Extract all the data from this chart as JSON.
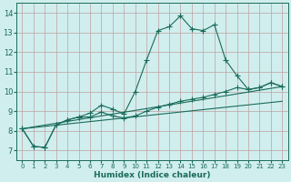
{
  "xlabel": "Humidex (Indice chaleur)",
  "xlim": [
    -0.5,
    23.5
  ],
  "ylim": [
    6.5,
    14.5
  ],
  "xticks": [
    0,
    1,
    2,
    3,
    4,
    5,
    6,
    7,
    8,
    9,
    10,
    11,
    12,
    13,
    14,
    15,
    16,
    17,
    18,
    19,
    20,
    21,
    22,
    23
  ],
  "yticks": [
    7,
    8,
    9,
    10,
    11,
    12,
    13,
    14
  ],
  "bg_color": "#d0eeee",
  "line_color": "#1a6b5a",
  "grid_color": "#c0a0a0",
  "series_main": {
    "x": [
      0,
      1,
      2,
      3,
      4,
      5,
      6,
      7,
      8,
      9,
      10,
      11,
      12,
      13,
      14,
      15,
      16,
      17,
      18,
      19,
      20,
      21,
      22,
      23
    ],
    "y": [
      8.1,
      7.2,
      7.15,
      8.3,
      8.55,
      8.7,
      8.9,
      9.3,
      9.1,
      8.85,
      10.0,
      11.6,
      13.1,
      13.3,
      13.85,
      13.2,
      13.1,
      13.4,
      11.6,
      10.8,
      10.1,
      10.2,
      10.45,
      10.25
    ]
  },
  "series_secondary": {
    "x": [
      0,
      1,
      2,
      3,
      4,
      5,
      6,
      7,
      8,
      9,
      10,
      11,
      12,
      13,
      14,
      15,
      16,
      17,
      18,
      19,
      20,
      21,
      22,
      23
    ],
    "y": [
      8.1,
      7.2,
      7.15,
      8.3,
      8.55,
      8.7,
      8.7,
      8.95,
      8.75,
      8.65,
      8.75,
      9.0,
      9.2,
      9.35,
      9.5,
      9.6,
      9.7,
      9.85,
      10.0,
      10.2,
      10.1,
      10.2,
      10.45,
      10.25
    ]
  },
  "line1_y": [
    8.1,
    10.25
  ],
  "line2_y": [
    8.1,
    9.5
  ]
}
